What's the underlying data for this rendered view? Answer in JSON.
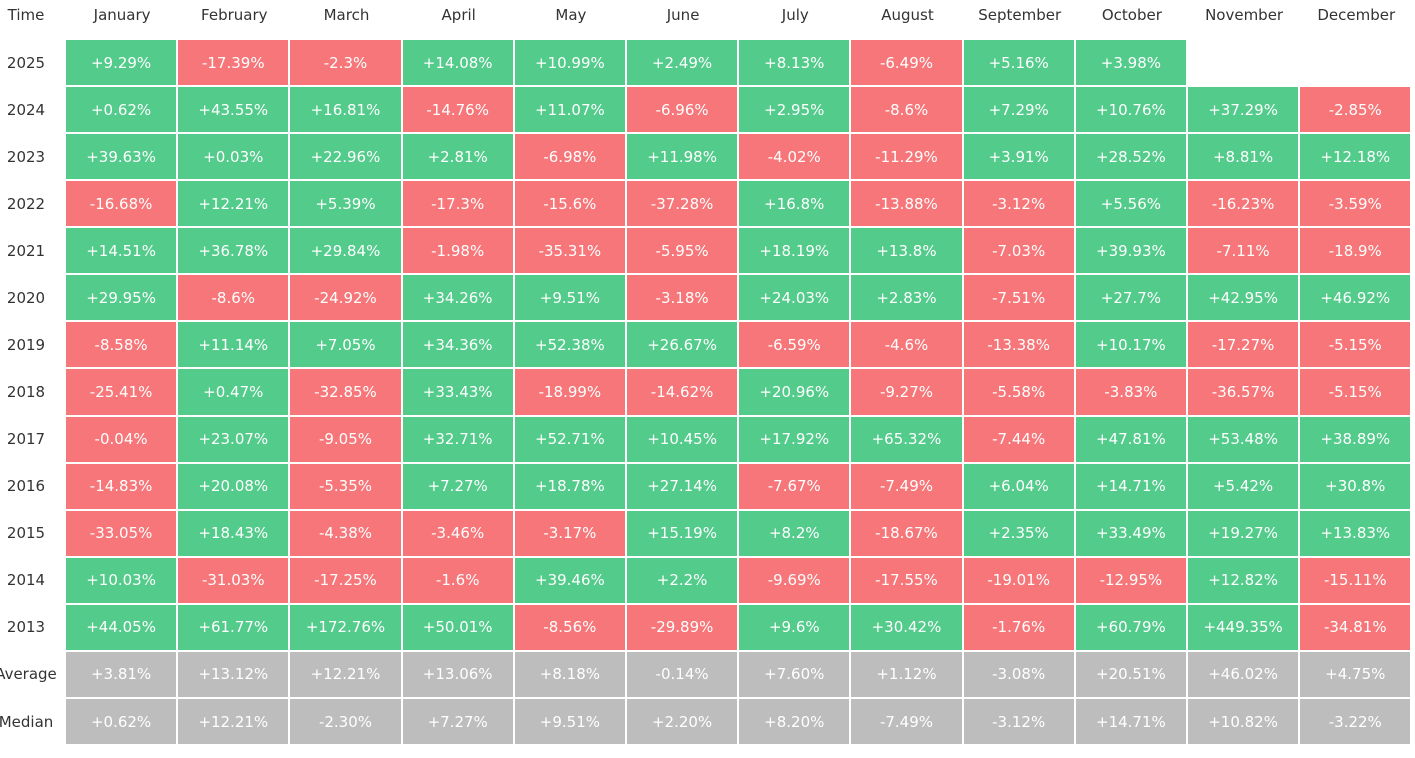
{
  "table": {
    "corner": "Time",
    "columns": [
      "January",
      "February",
      "March",
      "April",
      "May",
      "June",
      "July",
      "August",
      "September",
      "October",
      "November",
      "December"
    ],
    "rows": [
      {
        "label": "2025",
        "kind": "year",
        "cells": [
          "+9.29%",
          "-17.39%",
          "-2.3%",
          "+14.08%",
          "+10.99%",
          "+2.49%",
          "+8.13%",
          "-6.49%",
          "+5.16%",
          "+3.98%"
        ]
      },
      {
        "label": "2024",
        "kind": "year",
        "cells": [
          "+0.62%",
          "+43.55%",
          "+16.81%",
          "-14.76%",
          "+11.07%",
          "-6.96%",
          "+2.95%",
          "-8.6%",
          "+7.29%",
          "+10.76%",
          "+37.29%",
          "-2.85%"
        ]
      },
      {
        "label": "2023",
        "kind": "year",
        "cells": [
          "+39.63%",
          "+0.03%",
          "+22.96%",
          "+2.81%",
          "-6.98%",
          "+11.98%",
          "-4.02%",
          "-11.29%",
          "+3.91%",
          "+28.52%",
          "+8.81%",
          "+12.18%"
        ]
      },
      {
        "label": "2022",
        "kind": "year",
        "cells": [
          "-16.68%",
          "+12.21%",
          "+5.39%",
          "-17.3%",
          "-15.6%",
          "-37.28%",
          "+16.8%",
          "-13.88%",
          "-3.12%",
          "+5.56%",
          "-16.23%",
          "-3.59%"
        ]
      },
      {
        "label": "2021",
        "kind": "year",
        "cells": [
          "+14.51%",
          "+36.78%",
          "+29.84%",
          "-1.98%",
          "-35.31%",
          "-5.95%",
          "+18.19%",
          "+13.8%",
          "-7.03%",
          "+39.93%",
          "-7.11%",
          "-18.9%"
        ]
      },
      {
        "label": "2020",
        "kind": "year",
        "cells": [
          "+29.95%",
          "-8.6%",
          "-24.92%",
          "+34.26%",
          "+9.51%",
          "-3.18%",
          "+24.03%",
          "+2.83%",
          "-7.51%",
          "+27.7%",
          "+42.95%",
          "+46.92%"
        ]
      },
      {
        "label": "2019",
        "kind": "year",
        "cells": [
          "-8.58%",
          "+11.14%",
          "+7.05%",
          "+34.36%",
          "+52.38%",
          "+26.67%",
          "-6.59%",
          "-4.6%",
          "-13.38%",
          "+10.17%",
          "-17.27%",
          "-5.15%"
        ]
      },
      {
        "label": "2018",
        "kind": "year",
        "cells": [
          "-25.41%",
          "+0.47%",
          "-32.85%",
          "+33.43%",
          "-18.99%",
          "-14.62%",
          "+20.96%",
          "-9.27%",
          "-5.58%",
          "-3.83%",
          "-36.57%",
          "-5.15%"
        ]
      },
      {
        "label": "2017",
        "kind": "year",
        "cells": [
          "-0.04%",
          "+23.07%",
          "-9.05%",
          "+32.71%",
          "+52.71%",
          "+10.45%",
          "+17.92%",
          "+65.32%",
          "-7.44%",
          "+47.81%",
          "+53.48%",
          "+38.89%"
        ]
      },
      {
        "label": "2016",
        "kind": "year",
        "cells": [
          "-14.83%",
          "+20.08%",
          "-5.35%",
          "+7.27%",
          "+18.78%",
          "+27.14%",
          "-7.67%",
          "-7.49%",
          "+6.04%",
          "+14.71%",
          "+5.42%",
          "+30.8%"
        ]
      },
      {
        "label": "2015",
        "kind": "year",
        "cells": [
          "-33.05%",
          "+18.43%",
          "-4.38%",
          "-3.46%",
          "-3.17%",
          "+15.19%",
          "+8.2%",
          "-18.67%",
          "+2.35%",
          "+33.49%",
          "+19.27%",
          "+13.83%"
        ]
      },
      {
        "label": "2014",
        "kind": "year",
        "cells": [
          "+10.03%",
          "-31.03%",
          "-17.25%",
          "-1.6%",
          "+39.46%",
          "+2.2%",
          "-9.69%",
          "-17.55%",
          "-19.01%",
          "-12.95%",
          "+12.82%",
          "-15.11%"
        ]
      },
      {
        "label": "2013",
        "kind": "year",
        "cells": [
          "+44.05%",
          "+61.77%",
          "+172.76%",
          "+50.01%",
          "-8.56%",
          "-29.89%",
          "+9.6%",
          "+30.42%",
          "-1.76%",
          "+60.79%",
          "+449.35%",
          "-34.81%"
        ]
      },
      {
        "label": "Average",
        "kind": "summary",
        "cells": [
          "+3.81%",
          "+13.12%",
          "+12.21%",
          "+13.06%",
          "+8.18%",
          "-0.14%",
          "+7.60%",
          "+1.12%",
          "-3.08%",
          "+20.51%",
          "+46.02%",
          "+4.75%"
        ]
      },
      {
        "label": "Median",
        "kind": "summary",
        "cells": [
          "+0.62%",
          "+12.21%",
          "-2.30%",
          "+7.27%",
          "+9.51%",
          "+2.20%",
          "+8.20%",
          "-7.49%",
          "-3.12%",
          "+14.71%",
          "+10.82%",
          "-3.22%"
        ]
      }
    ],
    "colors": {
      "positive": "#52cb8b",
      "negative": "#f67679",
      "summary": "#bdbdbd"
    }
  }
}
